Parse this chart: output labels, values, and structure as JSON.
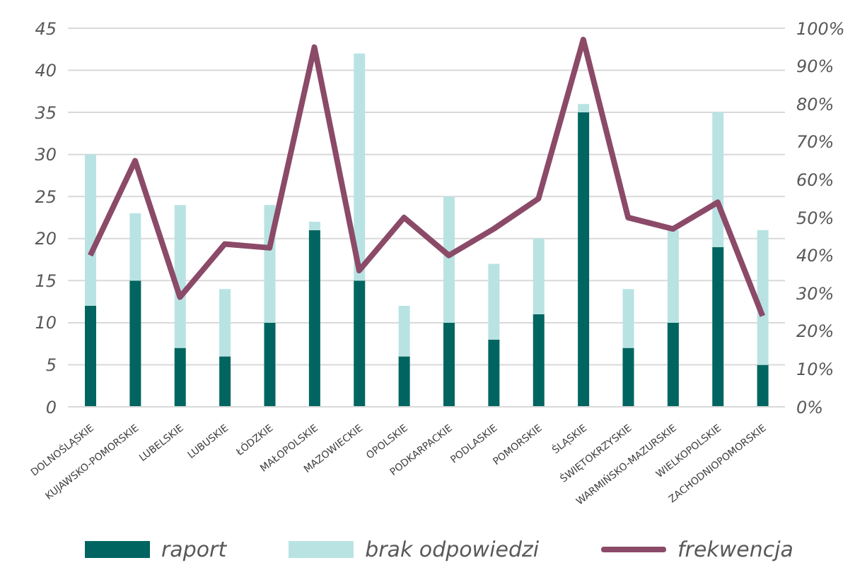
{
  "chart_data": {
    "type": "bar",
    "stacked": true,
    "categories": [
      "DOLNOŚLĄSKIE",
      "KUJAWSKO-POMORSKIE",
      "LUBELSKIE",
      "LUBUSKIE",
      "ŁÓDZKIE",
      "MAŁOPOLSKIE",
      "MAZOWIECKIE",
      "OPOLSKIE",
      "PODKARPACKIE",
      "PODLASKIE",
      "POMORSKIE",
      "ŚLĄSKIE",
      "ŚWIĘTOKRZYSKIE",
      "WARMIŃSKO-MAZURSKIE",
      "WIELKOPOLSKIE",
      "ZACHODNIOPOMORSKIE"
    ],
    "series": [
      {
        "name": "raport",
        "color": "#006560",
        "values": [
          12,
          15,
          7,
          6,
          10,
          21,
          15,
          6,
          10,
          8,
          11,
          35,
          7,
          10,
          19,
          5
        ]
      },
      {
        "name": "brak odpowiedzi",
        "color": "#b9e3e3",
        "values": [
          18,
          8,
          17,
          8,
          14,
          1,
          27,
          6,
          15,
          9,
          9,
          1,
          7,
          11,
          16,
          16
        ]
      },
      {
        "name": "frekwencja",
        "type": "line",
        "axis": "y2",
        "color": "#8b4a68",
        "values": [
          40,
          65,
          29,
          43,
          42,
          95,
          36,
          50,
          40,
          47,
          55,
          97,
          50,
          47,
          54,
          24
        ]
      }
    ],
    "ylim": [
      0,
      45
    ],
    "yticks": [
      0,
      5,
      10,
      15,
      20,
      25,
      30,
      35,
      40,
      45
    ],
    "y2lim": [
      0,
      100
    ],
    "y2ticks": [
      {
        "value": 0,
        "label": "0%"
      },
      {
        "value": 10,
        "label": "10%"
      },
      {
        "value": 20,
        "label": "20%"
      },
      {
        "value": 30,
        "label": "30%"
      },
      {
        "value": 40,
        "label": "40%"
      },
      {
        "value": 50,
        "label": "50%"
      },
      {
        "value": 60,
        "label": "60%"
      },
      {
        "value": 70,
        "label": "70%"
      },
      {
        "value": 80,
        "label": "80%"
      },
      {
        "value": 90,
        "label": "90%"
      },
      {
        "value": 100,
        "label": "100%"
      }
    ],
    "grid": "y",
    "legend": "bottom",
    "marker": "none"
  }
}
